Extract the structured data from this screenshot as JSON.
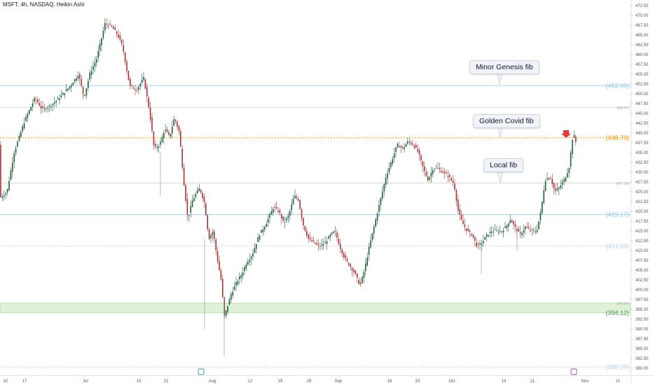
{
  "header": {
    "title": "MSFT, 4h, NASDAQ, Heikin Ashi"
  },
  "callouts": [
    {
      "text": "Minor Genesis fib"
    },
    {
      "text": "Golden Covid fib"
    },
    {
      "text": "Local fib"
    }
  ],
  "colors": {
    "up": "#26a69a",
    "down": "#ef5350",
    "up_candle": "#1b5e3b",
    "down_candle": "#a83232",
    "blue_level": "#9fd3f0",
    "orange_level": "#ff9800",
    "green_zone": "#dff2d8",
    "arrow": "#e53935"
  },
  "chart_data": {
    "type": "candlestick",
    "price_axis": {
      "ylim": [
        377.5,
        473.5
      ],
      "ticks": [
        "380.00",
        "382.50",
        "385.00",
        "387.50",
        "390.00",
        "392.50",
        "395.00",
        "397.50",
        "400.00",
        "402.50",
        "405.00",
        "407.50",
        "410.00",
        "412.50",
        "415.00",
        "417.50",
        "420.00",
        "422.50",
        "425.00",
        "427.50",
        "430.00",
        "432.50",
        "435.00",
        "437.50",
        "440.00",
        "442.50",
        "445.00",
        "447.50",
        "450.00",
        "452.50",
        "455.00",
        "457.50",
        "460.00",
        "462.50",
        "465.00",
        "467.50",
        "470.00",
        "472.50"
      ]
    },
    "time_axis": {
      "ticks": [
        "10",
        "17",
        "Jul",
        "15",
        "22",
        "Aug",
        "12",
        "19",
        "26",
        "Sep",
        "16",
        "23",
        "Oct",
        "14",
        "21",
        "Nov",
        "11"
      ]
    },
    "levels": [
      {
        "label": "(452.09)",
        "price": 452.09,
        "style": "solid",
        "color": "#9fd3f0"
      },
      {
        "label": "(446.57)",
        "price": 446.57,
        "style": "solid-thin",
        "color": "#c8c8c8"
      },
      {
        "label": "(438.79)",
        "price": 438.79,
        "style": "dotted",
        "color": "#ff9800"
      },
      {
        "label": "(427.28)",
        "price": 427.28,
        "style": "solid-thin",
        "color": "#c8c8c8"
      },
      {
        "label": "(419.17)",
        "price": 419.17,
        "style": "solid",
        "color": "#9fd3f0"
      },
      {
        "label": "(411.15)",
        "price": 411.15,
        "style": "dotted",
        "color": "#d0d0d0"
      },
      {
        "label": "(396.00)",
        "price": 396.0,
        "style": "none",
        "color": "#b0b0b0"
      },
      {
        "label": "(394.12)",
        "price": 394.12,
        "style": "zone",
        "color": "#5aa86a"
      },
      {
        "label": "(380.29)",
        "price": 380.29,
        "style": "dotted",
        "color": "#d0d0d0"
      }
    ],
    "zone": {
      "from": 394.12,
      "to": 396.6
    },
    "path_points": [
      [
        0,
        423.5
      ],
      [
        10,
        425
      ],
      [
        20,
        435
      ],
      [
        35,
        443
      ],
      [
        50,
        449
      ],
      [
        60,
        446
      ],
      [
        72,
        447
      ],
      [
        85,
        449
      ],
      [
        100,
        452
      ],
      [
        112,
        455
      ],
      [
        120,
        449
      ],
      [
        128,
        455
      ],
      [
        138,
        459
      ],
      [
        150,
        468
      ],
      [
        160,
        467
      ],
      [
        168,
        465
      ],
      [
        175,
        462
      ],
      [
        185,
        452
      ],
      [
        195,
        451
      ],
      [
        205,
        454
      ],
      [
        213,
        446
      ],
      [
        220,
        436
      ],
      [
        228,
        437
      ],
      [
        235,
        441
      ],
      [
        242,
        439
      ],
      [
        249,
        444
      ],
      [
        256,
        440
      ],
      [
        262,
        428
      ],
      [
        268,
        418
      ],
      [
        275,
        423
      ],
      [
        285,
        426
      ],
      [
        292,
        422
      ],
      [
        298,
        413
      ],
      [
        304,
        415
      ],
      [
        310,
        408
      ],
      [
        316,
        402
      ],
      [
        320,
        393
      ],
      [
        325,
        396
      ],
      [
        330,
        399
      ],
      [
        338,
        402
      ],
      [
        345,
        404
      ],
      [
        352,
        407
      ],
      [
        360,
        409
      ],
      [
        370,
        414
      ],
      [
        380,
        417
      ],
      [
        390,
        421
      ],
      [
        398,
        420
      ],
      [
        405,
        417
      ],
      [
        412,
        419
      ],
      [
        420,
        424
      ],
      [
        426,
        423
      ],
      [
        432,
        417
      ],
      [
        440,
        413
      ],
      [
        448,
        412
      ],
      [
        456,
        411
      ],
      [
        464,
        412
      ],
      [
        472,
        414
      ],
      [
        478,
        415
      ],
      [
        485,
        411
      ],
      [
        492,
        408
      ],
      [
        500,
        406
      ],
      [
        507,
        404
      ],
      [
        514,
        401
      ],
      [
        520,
        405
      ],
      [
        527,
        411
      ],
      [
        535,
        417
      ],
      [
        543,
        423
      ],
      [
        551,
        429
      ],
      [
        559,
        433
      ],
      [
        567,
        437
      ],
      [
        575,
        436
      ],
      [
        583,
        438
      ],
      [
        590,
        437
      ],
      [
        597,
        435
      ],
      [
        604,
        431
      ],
      [
        611,
        428
      ],
      [
        618,
        431
      ],
      [
        625,
        431
      ],
      [
        632,
        430
      ],
      [
        640,
        429
      ],
      [
        648,
        427
      ],
      [
        654,
        420
      ],
      [
        660,
        417
      ],
      [
        667,
        415
      ],
      [
        674,
        414
      ],
      [
        681,
        411
      ],
      [
        688,
        412
      ],
      [
        695,
        414
      ],
      [
        702,
        415
      ],
      [
        709,
        415
      ],
      [
        716,
        415
      ],
      [
        722,
        416
      ],
      [
        728,
        418
      ],
      [
        735,
        416
      ],
      [
        742,
        414
      ],
      [
        750,
        416
      ],
      [
        758,
        415
      ],
      [
        766,
        415
      ],
      [
        772,
        420
      ],
      [
        778,
        428
      ],
      [
        785,
        429
      ],
      [
        792,
        425
      ],
      [
        798,
        426
      ],
      [
        805,
        428
      ],
      [
        812,
        431
      ],
      [
        818,
        440
      ],
      [
        823,
        437
      ]
    ]
  }
}
